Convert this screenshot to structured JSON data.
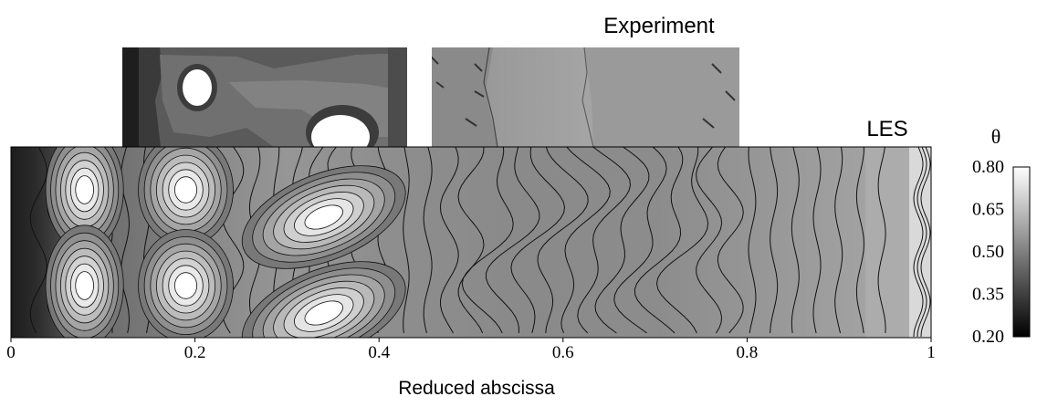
{
  "chart_data": {
    "type": "heatmap",
    "xlabel": "Reduced abscissa",
    "x_ticks": [
      0,
      0.2,
      0.4,
      0.6,
      0.8,
      1
    ],
    "x_tick_labels": [
      "0",
      "0.2",
      "0.4",
      "0.6",
      "0.8",
      "1"
    ],
    "xlim": [
      0,
      1
    ],
    "panels": [
      {
        "name": "Experiment",
        "label": "Experiment",
        "x_range": [
          0.117,
          0.775
        ]
      },
      {
        "name": "LES",
        "label": "LES",
        "x_range": [
          0,
          1
        ]
      }
    ],
    "colorbar": {
      "title": "θ",
      "range": [
        0.2,
        0.8
      ],
      "ticks": [
        0.2,
        0.35,
        0.5,
        0.65,
        0.8
      ],
      "tick_labels": [
        "0.80",
        "0.65",
        "0.50",
        "0.35",
        "0.20"
      ],
      "colors": [
        "#000000",
        "#ffffff"
      ]
    },
    "hot_spots": [
      {
        "x": 0.08,
        "theta": 0.8
      },
      {
        "x": 0.19,
        "theta": 0.8
      },
      {
        "x": 0.34,
        "theta": 0.78
      }
    ],
    "grid": false
  }
}
